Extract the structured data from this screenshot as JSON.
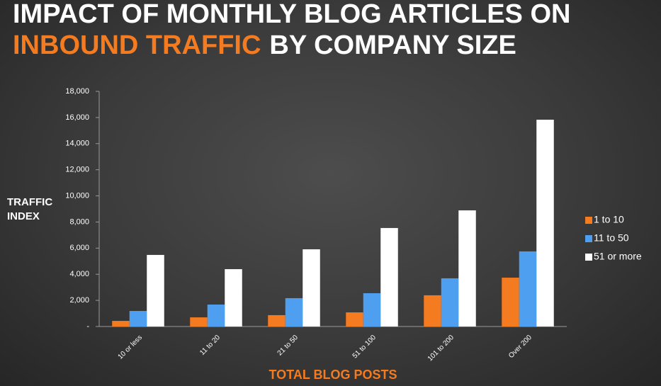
{
  "chart_data": {
    "type": "bar",
    "title_line1": "IMPACT OF MONTHLY BLOG ARTICLES ON",
    "title_highlight": "INBOUND TRAFFIC",
    "title_rest": "BY COMPANY SIZE",
    "y_label": "TRAFFIC INDEX",
    "x_label": "TOTAL BLOG POSTS",
    "categories": [
      "10 or less",
      "11 to 20",
      "21 to 50",
      "51 to 100",
      "101 to 200",
      "Over 200"
    ],
    "series": [
      {
        "name": "1 to 10",
        "color": "#f47b20",
        "values": [
          430,
          700,
          870,
          1080,
          2390,
          3740
        ]
      },
      {
        "name": "11 to 50",
        "color": "#4f9ff0",
        "values": [
          1190,
          1680,
          2170,
          2550,
          3690,
          5750
        ]
      },
      {
        "name": "51 or more",
        "color": "#ffffff",
        "values": [
          5480,
          4390,
          5910,
          7540,
          8890,
          15830
        ]
      }
    ],
    "ylim": [
      0,
      18000
    ],
    "yticks": [
      {
        "value": 0,
        "label": "-"
      },
      {
        "value": 2000,
        "label": "2,000"
      },
      {
        "value": 4000,
        "label": "4,000"
      },
      {
        "value": 6000,
        "label": "6,000"
      },
      {
        "value": 8000,
        "label": "8,000"
      },
      {
        "value": 10000,
        "label": "10,000"
      },
      {
        "value": 12000,
        "label": "12,000"
      },
      {
        "value": 14000,
        "label": "14,000"
      },
      {
        "value": 16000,
        "label": "16,000"
      },
      {
        "value": 18000,
        "label": "18,000"
      }
    ],
    "legend": "right"
  }
}
